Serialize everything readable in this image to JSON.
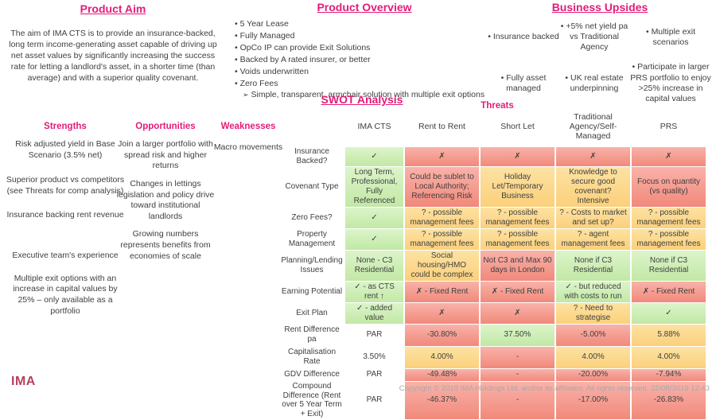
{
  "product_aim": {
    "title": "Product Aim",
    "body": "The aim of IMA CTS is to provide an insurance-backed, long term income-generating asset capable of driving up net asset values by significantly increasing the success rate for letting a landlord's asset, in a shorter time (than average) and with a superior quality covenant."
  },
  "product_overview": {
    "title": "Product Overview",
    "bullets": [
      "5 Year Lease",
      "Fully Managed",
      "OpCo IP can provide Exit Solutions",
      "Backed by A rated insurer, or better",
      "Voids underwritten",
      "Zero Fees"
    ],
    "sub_bullet": "Simple, transparent, armchair solution with multiple exit options",
    "sub_bullet_marker": "➢"
  },
  "business_upsides": {
    "title": "Business Upsides",
    "items": [
      "Insurance backed",
      "+5% net yield pa vs Traditional Agency",
      "Multiple exit scenarios",
      "Fully asset managed",
      "UK real estate underpinning",
      "Participate in larger PRS portfolio to enjoy >25% increase in capital values"
    ]
  },
  "swot": {
    "title": "SWOT Analysis",
    "threats_label": "Threats",
    "strengths": {
      "title": "Strengths",
      "items": [
        "Risk adjusted yield in Base Scenario (3.5% net)",
        "Superior product vs competitors (see Threats for comp analysis)",
        "Insurance backing rent revenue",
        "Executive team's experience",
        "Multiple exit options with an increase in capital values by 25% – only available as a portfolio"
      ]
    },
    "opportunities": {
      "title": "Opportunities",
      "items": [
        "Join a larger portfolio with spread risk and higher returns",
        "Changes in lettings legislation and policy drive toward institutional landlords",
        "Growing numbers represents benefits from economies of scale"
      ]
    },
    "weaknesses": {
      "title": "Weaknesses",
      "items": [
        "Macro movements"
      ]
    }
  },
  "comparison_table": {
    "columns": [
      "IMA CTS",
      "Rent to Rent",
      "Short Let",
      "Traditional Agency/Self-Managed",
      "PRS"
    ],
    "rows": [
      {
        "label": "Insurance Backed?",
        "cells": [
          {
            "text": "✓",
            "color": "green"
          },
          {
            "text": "✗",
            "color": "red"
          },
          {
            "text": "✗",
            "color": "red"
          },
          {
            "text": "✗",
            "color": "red"
          },
          {
            "text": "✗",
            "color": "red"
          }
        ]
      },
      {
        "label": "Covenant Type",
        "cells": [
          {
            "text": "Long Term, Professional, Fully Referenced",
            "color": "green"
          },
          {
            "text": "Could be sublet to Local Authority; Referencing Risk",
            "color": "red"
          },
          {
            "text": "Holiday Let/Temporary Business",
            "color": "yellow"
          },
          {
            "text": "Knowledge to secure good covenant? Intensive",
            "color": "yellow"
          },
          {
            "text": "Focus on quantity (vs quality)",
            "color": "red"
          }
        ]
      },
      {
        "label": "Zero Fees?",
        "cells": [
          {
            "text": "✓",
            "color": "green"
          },
          {
            "text": "? - possible management fees",
            "color": "yellow"
          },
          {
            "text": "? - possible management fees",
            "color": "yellow"
          },
          {
            "text": "? - Costs to market and set up?",
            "color": "yellow"
          },
          {
            "text": "? - possible management fees",
            "color": "yellow"
          }
        ]
      },
      {
        "label": "Property Management",
        "cells": [
          {
            "text": "✓",
            "color": "green"
          },
          {
            "text": "? - possible management fees",
            "color": "yellow"
          },
          {
            "text": "? - possible management fees",
            "color": "yellow"
          },
          {
            "text": "? - agent management fees",
            "color": "yellow"
          },
          {
            "text": "? - possible management fees",
            "color": "yellow"
          }
        ]
      },
      {
        "label": "Planning/Lending Issues",
        "cells": [
          {
            "text": "None - C3 Residential",
            "color": "green"
          },
          {
            "text": "Social housing/HMO could be complex",
            "color": "yellow"
          },
          {
            "text": "Not C3 and Max 90 days in London",
            "color": "red"
          },
          {
            "text": "None if C3 Residential",
            "color": "green"
          },
          {
            "text": "None if C3 Residential",
            "color": "green"
          }
        ]
      },
      {
        "label": "Earning Potential",
        "cells": [
          {
            "text": "✓ - as CTS rent ↑",
            "color": "green"
          },
          {
            "text": "✗ - Fixed Rent",
            "color": "red"
          },
          {
            "text": "✗ - Fixed Rent",
            "color": "red"
          },
          {
            "text": "✓ - but reduced with costs to run",
            "color": "green"
          },
          {
            "text": "✗ - Fixed Rent",
            "color": "red"
          }
        ]
      },
      {
        "label": "Exit Plan",
        "cells": [
          {
            "text": "✓ - added value",
            "color": "green"
          },
          {
            "text": "✗",
            "color": "red"
          },
          {
            "text": "✗",
            "color": "red"
          },
          {
            "text": "? - Need to strategise",
            "color": "yellow"
          },
          {
            "text": "✓",
            "color": "green"
          }
        ]
      },
      {
        "label": "Rent Difference pa",
        "cells": [
          {
            "text": "PAR",
            "color": "none"
          },
          {
            "text": "-30.80%",
            "color": "red"
          },
          {
            "text": "37.50%",
            "color": "green"
          },
          {
            "text": "-5.00%",
            "color": "red"
          },
          {
            "text": "5.88%",
            "color": "yellow"
          }
        ]
      },
      {
        "label": "Capitalisation Rate",
        "cells": [
          {
            "text": "3.50%",
            "color": "none"
          },
          {
            "text": "4.00%",
            "color": "yellow"
          },
          {
            "text": "-",
            "color": "red"
          },
          {
            "text": "4.00%",
            "color": "yellow"
          },
          {
            "text": "4.00%",
            "color": "yellow"
          }
        ]
      },
      {
        "label": "GDV Difference",
        "cells": [
          {
            "text": "PAR",
            "color": "none"
          },
          {
            "text": "-49.48%",
            "color": "red"
          },
          {
            "text": "-",
            "color": "red"
          },
          {
            "text": "-20.00%",
            "color": "red"
          },
          {
            "text": "-7.94%",
            "color": "red"
          }
        ]
      },
      {
        "label": "Compound Difference (Rent over 5 Year Term + Exit)",
        "cells": [
          {
            "text": "PAR",
            "color": "none"
          },
          {
            "text": "-46.37%",
            "color": "red"
          },
          {
            "text": "-",
            "color": "red"
          },
          {
            "text": "-17.00%",
            "color": "red"
          },
          {
            "text": "-26.83%",
            "color": "red"
          }
        ]
      }
    ]
  },
  "footer": {
    "logo": "IMA",
    "copyright": "Copyright © 2019 IMA Holdings Ltd. and/or its affiliates. All rights reserved.  22/08/2019 12:43"
  },
  "colors": {
    "accent_pink": "#e31c79",
    "logo_red": "#b6415c",
    "cell_green": "#c9ecae",
    "cell_red": "#f4998c",
    "cell_yellow": "#fbd483",
    "body_text": "#404040",
    "muted_text": "#a9a9a9"
  }
}
